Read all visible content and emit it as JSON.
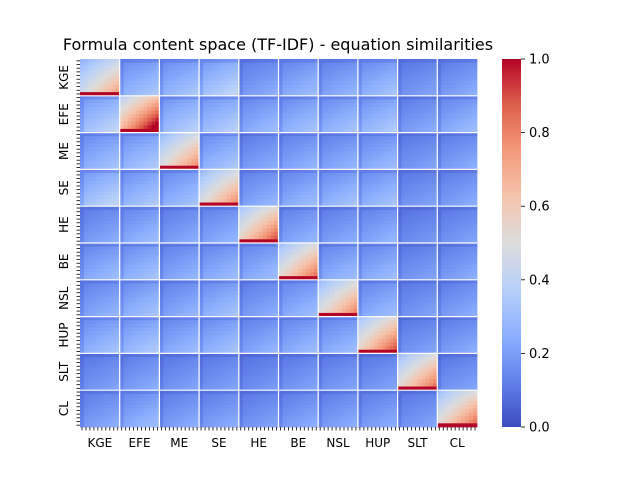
{
  "chart_data": {
    "type": "heatmap",
    "title": "Formula content space (TF-IDF) - equation similarities",
    "xlabel": "",
    "ylabel": "",
    "categories": [
      "KGE",
      "EFE",
      "ME",
      "SE",
      "HE",
      "BE",
      "NSL",
      "HUP",
      "SLT",
      "CL"
    ],
    "equations_per_category": 10,
    "colormap": "coolwarm",
    "value_range": [
      0.0,
      1.0
    ],
    "colorbar_ticks": [
      "0.0",
      "0.2",
      "0.4",
      "0.6",
      "0.8",
      "1.0"
    ],
    "block_mean_similarity": [
      [
        0.55,
        0.25,
        0.25,
        0.3,
        0.18,
        0.22,
        0.2,
        0.24,
        0.16,
        0.18
      ],
      [
        0.3,
        0.85,
        0.28,
        0.28,
        0.22,
        0.24,
        0.24,
        0.26,
        0.18,
        0.22
      ],
      [
        0.24,
        0.26,
        0.6,
        0.25,
        0.18,
        0.2,
        0.2,
        0.22,
        0.16,
        0.18
      ],
      [
        0.3,
        0.26,
        0.24,
        0.6,
        0.2,
        0.22,
        0.24,
        0.24,
        0.16,
        0.18
      ],
      [
        0.18,
        0.22,
        0.18,
        0.2,
        0.7,
        0.2,
        0.18,
        0.2,
        0.14,
        0.16
      ],
      [
        0.22,
        0.24,
        0.2,
        0.22,
        0.22,
        0.65,
        0.22,
        0.22,
        0.16,
        0.18
      ],
      [
        0.2,
        0.24,
        0.2,
        0.24,
        0.18,
        0.22,
        0.62,
        0.22,
        0.16,
        0.18
      ],
      [
        0.24,
        0.26,
        0.22,
        0.24,
        0.2,
        0.22,
        0.22,
        0.7,
        0.16,
        0.18
      ],
      [
        0.16,
        0.18,
        0.16,
        0.16,
        0.14,
        0.16,
        0.16,
        0.16,
        0.65,
        0.16
      ],
      [
        0.18,
        0.22,
        0.18,
        0.18,
        0.16,
        0.18,
        0.18,
        0.18,
        0.16,
        0.65
      ]
    ]
  }
}
